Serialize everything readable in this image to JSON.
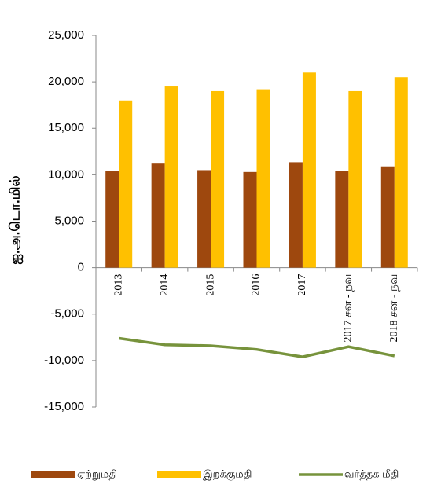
{
  "chart_data": {
    "type": "bar-line",
    "y_label": "ஐ.அ.டொ.மில்",
    "categories": [
      "2013",
      "2014",
      "2015",
      "2016",
      "2017",
      "2017 சன - நவ",
      "2018 சன - நவ"
    ],
    "series": [
      {
        "name": "ஏற்றுமதி",
        "color": "#9e480e",
        "type": "bar",
        "values": [
          10400,
          11200,
          10500,
          10300,
          11350,
          10400,
          10900
        ]
      },
      {
        "name": "இறக்குமதி",
        "color": "#ffc000",
        "type": "bar",
        "values": [
          18000,
          19500,
          19000,
          19200,
          21000,
          19000,
          20500
        ]
      },
      {
        "name": "வர்த்தக  மீதி",
        "color": "#77933c",
        "type": "line",
        "values": [
          -7600,
          -8300,
          -8400,
          -8800,
          -9600,
          -8500,
          -9500
        ]
      }
    ],
    "ylim": [
      -15000,
      25000
    ],
    "yticks": [
      {
        "value": -15000,
        "label": "-15,000"
      },
      {
        "value": -10000,
        "label": "-10,000"
      },
      {
        "value": -5000,
        "label": "-5,000"
      },
      0,
      {
        "value": 5000,
        "label": "5,000"
      },
      {
        "value": 10000,
        "label": "10,000"
      },
      {
        "value": 15000,
        "label": "15,000"
      },
      {
        "value": 20000,
        "label": "20,000"
      },
      {
        "value": 25000,
        "label": "25,000"
      }
    ],
    "grid": false,
    "legend": "bottom"
  }
}
